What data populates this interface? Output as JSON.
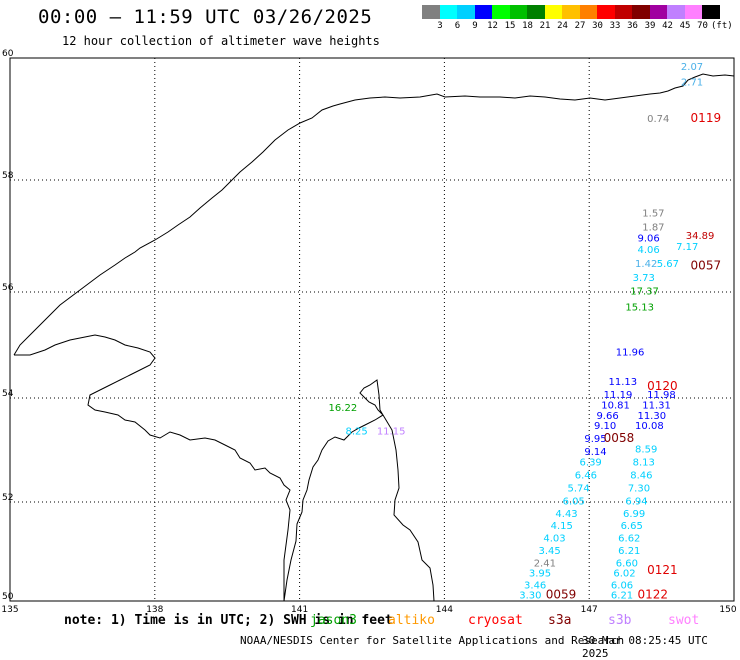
{
  "header": {
    "title": "00:00 – 11:59 UTC 03/26/2025",
    "subtitle": "12 hour collection of altimeter wave heights"
  },
  "colorbar": {
    "unit": "(ft)",
    "swatches": [
      "#808080",
      "#00ffff",
      "#00d0ff",
      "#0000ff",
      "#00ff00",
      "#00c000",
      "#008000",
      "#ffff00",
      "#ffc000",
      "#ff8000",
      "#ff0000",
      "#c00000",
      "#800000",
      "#a000a0",
      "#c080ff",
      "#ff80ff",
      "#000000"
    ],
    "labels": [
      "3",
      "6",
      "9",
      "12",
      "15",
      "18",
      "21",
      "24",
      "27",
      "30",
      "33",
      "36",
      "39",
      "42",
      "45",
      "70",
      "(ft)"
    ]
  },
  "axes": {
    "x_ticks": [
      "135",
      "138",
      "141",
      "144",
      "147",
      "150"
    ],
    "y_ticks": [
      "60",
      "58",
      "56",
      "54",
      "52",
      "50"
    ]
  },
  "points": [
    {
      "text": "2.07",
      "color": "#4ab0e8",
      "lon": 148.9,
      "lat": 59.8
    },
    {
      "text": "2.71",
      "color": "#4ab0e8",
      "lon": 148.9,
      "lat": 59.55
    },
    {
      "text": "0.74",
      "color": "#808080",
      "lon": 148.2,
      "lat": 58.95
    },
    {
      "text": "1.57",
      "color": "#808080",
      "lon": 148.1,
      "lat": 57.35
    },
    {
      "text": "1.87",
      "color": "#808080",
      "lon": 148.1,
      "lat": 57.1
    },
    {
      "text": "9.06",
      "color": "#0000ff",
      "lon": 148.0,
      "lat": 56.9
    },
    {
      "text": "4.06",
      "color": "#00d0ff",
      "lon": 148.0,
      "lat": 56.7
    },
    {
      "text": "1.42",
      "color": "#4ab0e8",
      "lon": 147.95,
      "lat": 56.45
    },
    {
      "text": "3.73",
      "color": "#00d0ff",
      "lon": 147.9,
      "lat": 56.2
    },
    {
      "text": "17.37",
      "color": "#00a000",
      "lon": 147.85,
      "lat": 55.95
    },
    {
      "text": "15.13",
      "color": "#00a000",
      "lon": 147.75,
      "lat": 55.65
    },
    {
      "text": "11.96",
      "color": "#0000ff",
      "lon": 147.55,
      "lat": 54.8
    },
    {
      "text": "11.13",
      "color": "#0000ff",
      "lon": 147.4,
      "lat": 54.25
    },
    {
      "text": "11.19",
      "color": "#0000ff",
      "lon": 147.3,
      "lat": 54.0
    },
    {
      "text": "10.81",
      "color": "#0000ff",
      "lon": 147.25,
      "lat": 53.8
    },
    {
      "text": "9.66",
      "color": "#0000ff",
      "lon": 147.15,
      "lat": 53.6
    },
    {
      "text": "9.10",
      "color": "#0000ff",
      "lon": 147.1,
      "lat": 53.4
    },
    {
      "text": "9.95",
      "color": "#0000ff",
      "lon": 146.9,
      "lat": 53.15
    },
    {
      "text": "9.14",
      "color": "#0000ff",
      "lon": 146.9,
      "lat": 52.9
    },
    {
      "text": "6.39",
      "color": "#00d0ff",
      "lon": 146.8,
      "lat": 52.7
    },
    {
      "text": "6.46",
      "color": "#00d0ff",
      "lon": 146.7,
      "lat": 52.45
    },
    {
      "text": "5.74",
      "color": "#00d0ff",
      "lon": 146.55,
      "lat": 52.2
    },
    {
      "text": "6.05",
      "color": "#00d0ff",
      "lon": 146.45,
      "lat": 51.95
    },
    {
      "text": "4.43",
      "color": "#00d0ff",
      "lon": 146.3,
      "lat": 51.7
    },
    {
      "text": "4.15",
      "color": "#00d0ff",
      "lon": 146.2,
      "lat": 51.45
    },
    {
      "text": "4.03",
      "color": "#00d0ff",
      "lon": 146.05,
      "lat": 51.2
    },
    {
      "text": "3.45",
      "color": "#00d0ff",
      "lon": 145.95,
      "lat": 50.95
    },
    {
      "text": "2.41",
      "color": "#808080",
      "lon": 145.85,
      "lat": 50.7
    },
    {
      "text": "3.95",
      "color": "#00d0ff",
      "lon": 145.75,
      "lat": 50.5
    },
    {
      "text": "3.46",
      "color": "#00d0ff",
      "lon": 145.65,
      "lat": 50.25
    },
    {
      "text": "3.30",
      "color": "#00d0ff",
      "lon": 145.55,
      "lat": 50.05
    },
    {
      "text": "34.89",
      "color": "#c00000",
      "lon": 149.0,
      "lat": 56.95
    },
    {
      "text": "7.17",
      "color": "#00d0ff",
      "lon": 148.8,
      "lat": 56.75
    },
    {
      "text": "5.67",
      "color": "#00d0ff",
      "lon": 148.4,
      "lat": 56.45
    },
    {
      "text": "11.98",
      "color": "#0000ff",
      "lon": 148.2,
      "lat": 54.0
    },
    {
      "text": "11.31",
      "color": "#0000ff",
      "lon": 148.1,
      "lat": 53.8
    },
    {
      "text": "11.30",
      "color": "#0000ff",
      "lon": 148.0,
      "lat": 53.6
    },
    {
      "text": "10.08",
      "color": "#0000ff",
      "lon": 147.95,
      "lat": 53.4
    },
    {
      "text": "8.59",
      "color": "#00d0ff",
      "lon": 147.95,
      "lat": 52.95
    },
    {
      "text": "8.13",
      "color": "#00d0ff",
      "lon": 147.9,
      "lat": 52.7
    },
    {
      "text": "8.46",
      "color": "#00d0ff",
      "lon": 147.85,
      "lat": 52.45
    },
    {
      "text": "7.30",
      "color": "#00d0ff",
      "lon": 147.8,
      "lat": 52.2
    },
    {
      "text": "6.94",
      "color": "#00d0ff",
      "lon": 147.75,
      "lat": 51.95
    },
    {
      "text": "6.99",
      "color": "#00d0ff",
      "lon": 147.7,
      "lat": 51.7
    },
    {
      "text": "6.65",
      "color": "#00d0ff",
      "lon": 147.65,
      "lat": 51.45
    },
    {
      "text": "6.62",
      "color": "#00d0ff",
      "lon": 147.6,
      "lat": 51.2
    },
    {
      "text": "6.21",
      "color": "#00d0ff",
      "lon": 147.6,
      "lat": 50.95
    },
    {
      "text": "6.60",
      "color": "#00d0ff",
      "lon": 147.55,
      "lat": 50.7
    },
    {
      "text": "6.02",
      "color": "#00d0ff",
      "lon": 147.5,
      "lat": 50.5
    },
    {
      "text": "6.06",
      "color": "#00d0ff",
      "lon": 147.45,
      "lat": 50.25
    },
    {
      "text": "6.21",
      "color": "#00d0ff",
      "lon": 147.45,
      "lat": 50.05
    },
    {
      "text": "16.22",
      "color": "#00a000",
      "lon": 141.6,
      "lat": 53.75
    },
    {
      "text": "8.25",
      "color": "#00d0ff",
      "lon": 141.95,
      "lat": 53.3
    },
    {
      "text": "11.15",
      "color": "#c080ff",
      "lon": 142.6,
      "lat": 53.3
    }
  ],
  "pass_ids": [
    {
      "text": "0119",
      "color": "#e00000",
      "lon": 149.1,
      "lat": 58.95
    },
    {
      "text": "0057",
      "color": "#800000",
      "lon": 149.1,
      "lat": 56.4
    },
    {
      "text": "0120",
      "color": "#e00000",
      "lon": 148.2,
      "lat": 54.15
    },
    {
      "text": "0058",
      "color": "#800000",
      "lon": 147.3,
      "lat": 53.15
    },
    {
      "text": "0121",
      "color": "#e00000",
      "lon": 148.2,
      "lat": 50.55
    },
    {
      "text": "0122",
      "color": "#e00000",
      "lon": 148.0,
      "lat": 50.05
    },
    {
      "text": "0059",
      "color": "#800000",
      "lon": 146.1,
      "lat": 50.05
    }
  ],
  "footer": {
    "note": "note: 1) Time is in UTC; 2) SWH is in feet",
    "satellites": [
      {
        "name": "jason3",
        "color": "#00a000"
      },
      {
        "name": "altiko",
        "color": "#ff9900"
      },
      {
        "name": "cryosat",
        "color": "#ff0000"
      },
      {
        "name": "s3a",
        "color": "#800000"
      },
      {
        "name": "s3b",
        "color": "#c080ff"
      },
      {
        "name": "swot",
        "color": "#ff80ff"
      }
    ],
    "credit": "NOAA/NESDIS Center for Satellite Applications and Research",
    "timestamp": "30 Mar 08:25:45 UTC 2025"
  }
}
